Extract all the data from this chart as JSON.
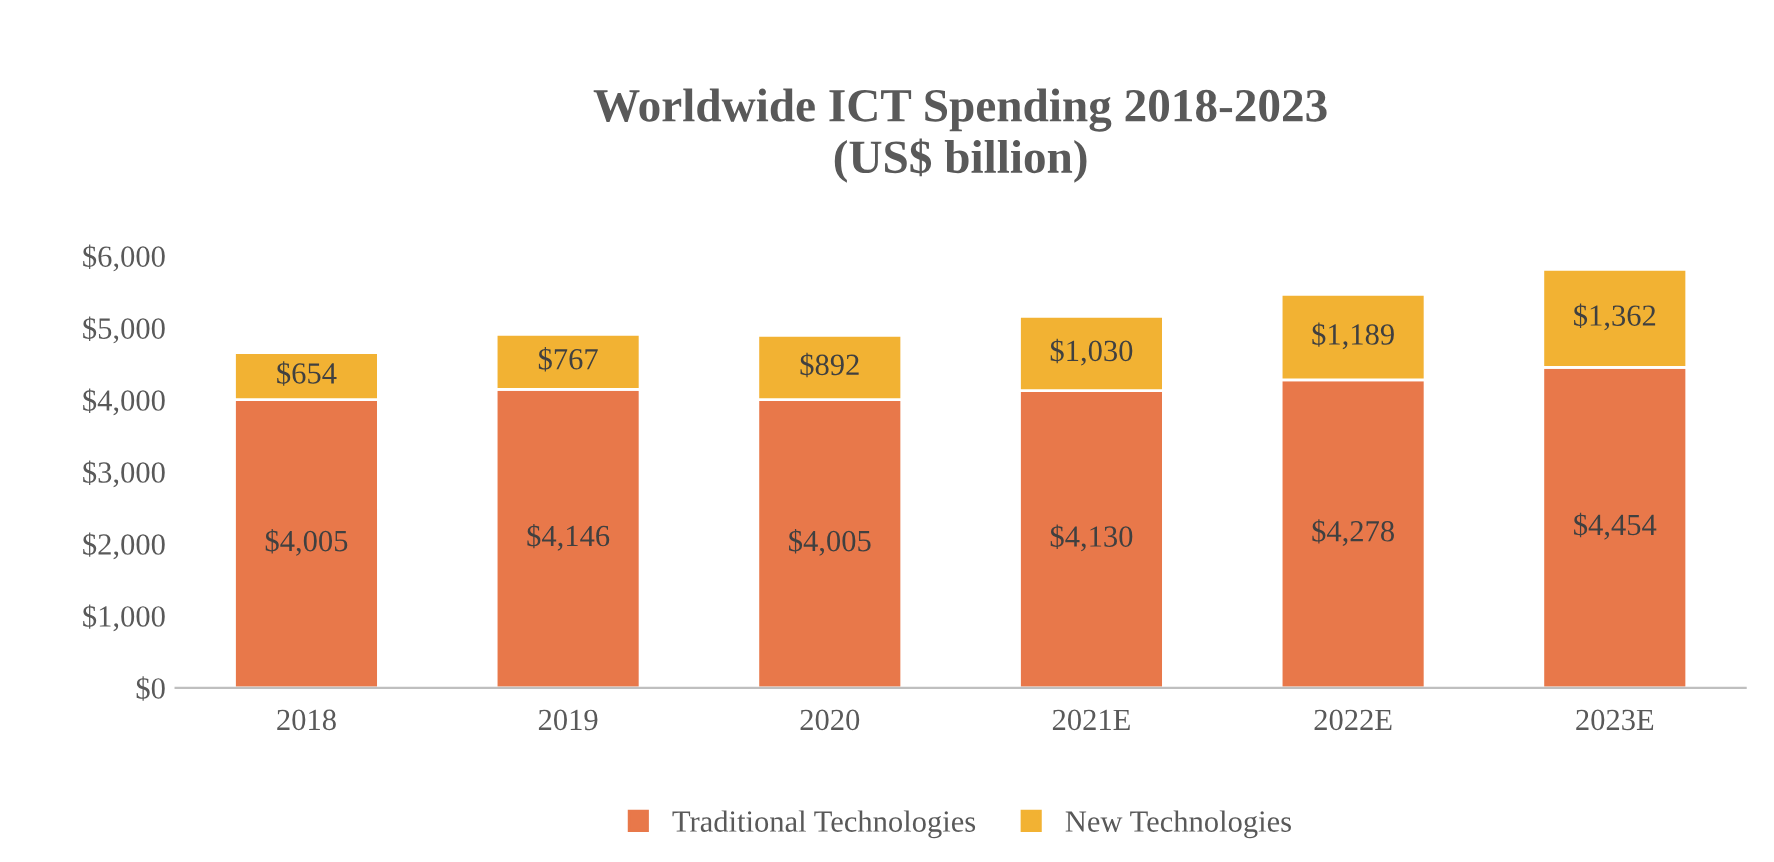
{
  "chart_data": {
    "type": "bar",
    "title": "Worldwide ICT Spending 2018-2023\n(US$ billion)",
    "categories": [
      "2018",
      "2019",
      "2020",
      "2021E",
      "2022E",
      "2023E"
    ],
    "stacked": true,
    "series": [
      {
        "name": "Traditional Technologies",
        "color": "#e8784a",
        "values": [
          4005,
          4146,
          4005,
          4130,
          4278,
          4454
        ],
        "value_labels": [
          "$4,005",
          "$4,146",
          "$4,005",
          "$4,130",
          "$4,278",
          "$4,454"
        ]
      },
      {
        "name": "New Technologies",
        "color": "#f2b233",
        "values": [
          654,
          767,
          892,
          1030,
          1189,
          1362
        ],
        "value_labels": [
          "$654",
          "$767",
          "$892",
          "$1,030",
          "$1,189",
          "$1,362"
        ]
      }
    ],
    "ylim": [
      0,
      6000
    ],
    "yticks": [
      {
        "value": 0,
        "label": "$0"
      },
      {
        "value": 1000,
        "label": "$1,000"
      },
      {
        "value": 2000,
        "label": "$2,000"
      },
      {
        "value": 3000,
        "label": "$3,000"
      },
      {
        "value": 4000,
        "label": "$4,000"
      },
      {
        "value": 5000,
        "label": "$5,000"
      },
      {
        "value": 6000,
        "label": "$6,000"
      }
    ],
    "grid": false,
    "legend": "bottom"
  }
}
